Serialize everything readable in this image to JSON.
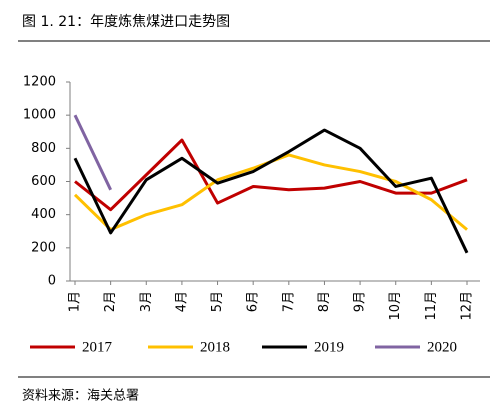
{
  "chart_data": {
    "type": "line",
    "title": "图 1. 21：年度炼焦煤进口走势图",
    "source": "资料来源：海关总署",
    "categories": [
      "1月",
      "2月",
      "3月",
      "4月",
      "5月",
      "6月",
      "7月",
      "8月",
      "9月",
      "10月",
      "11月",
      "12月"
    ],
    "series": [
      {
        "name": "2017",
        "color": "#c00000",
        "values": [
          600,
          430,
          640,
          850,
          470,
          570,
          550,
          560,
          600,
          530,
          530,
          610
        ]
      },
      {
        "name": "2018",
        "color": "#ffc000",
        "values": [
          520,
          310,
          400,
          460,
          610,
          680,
          760,
          700,
          660,
          600,
          490,
          310
        ]
      },
      {
        "name": "2019",
        "color": "#000000",
        "values": [
          740,
          290,
          610,
          740,
          590,
          660,
          780,
          910,
          800,
          570,
          620,
          170
        ]
      },
      {
        "name": "2020",
        "color": "#8064a2",
        "values": [
          1000,
          550,
          null,
          null,
          null,
          null,
          null,
          null,
          null,
          null,
          null,
          null
        ]
      }
    ],
    "ylim": [
      0,
      1200
    ],
    "yticks": [
      0,
      200,
      400,
      600,
      800,
      1000,
      1200
    ],
    "grid": false
  }
}
